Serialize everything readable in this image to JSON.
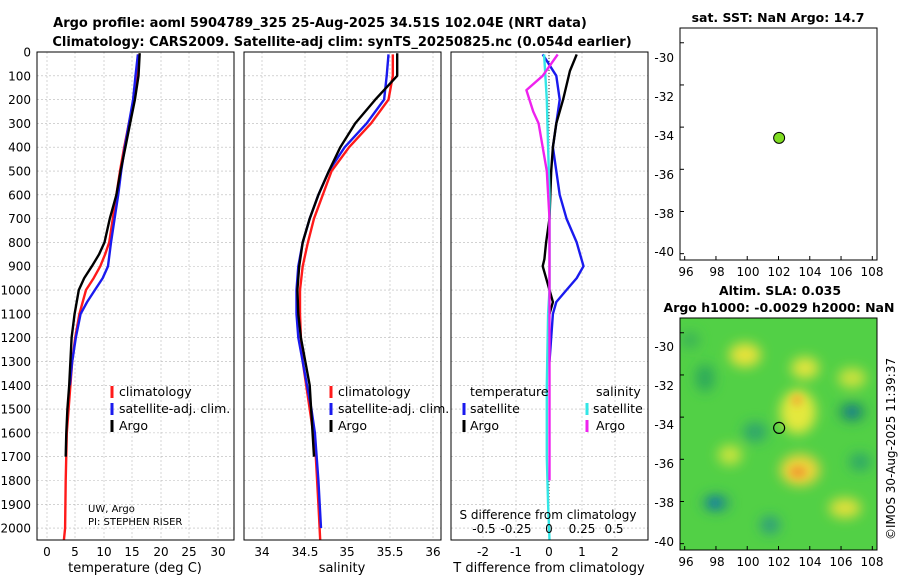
{
  "header": {
    "title_line1": "Argo profile: aoml 5904789_325 25-Aug-2025 34.51S 102.04E (NRT data)",
    "title_line2": "Climatology: CARS2009. Satellite-adj clim: synTS_20250825.nc (0.054d earlier)"
  },
  "credits": {
    "institution": "UW, Argo",
    "pi": "PI: STEPHEN RISER",
    "stamp": "©IMOS 30-Aug-2025 11:39:37"
  },
  "colors": {
    "climatology": "#ff1a1a",
    "satellite": "#1a1aee",
    "argo": "#000000",
    "sat_salinity": "#33e6e6",
    "argo_salinity": "#ee22ee",
    "sst_dot": "#7fdc22",
    "grid": "#b8b8b8"
  },
  "depth_axis": {
    "ylim": [
      2050,
      0
    ],
    "ticks": [
      "0",
      "100",
      "200",
      "300",
      "400",
      "500",
      "600",
      "700",
      "800",
      "900",
      "1000",
      "1100",
      "1200",
      "1300",
      "1400",
      "1500",
      "1600",
      "1700",
      "1800",
      "1900",
      "2000"
    ]
  },
  "chart_data": [
    {
      "type": "line",
      "name": "temperature-profile",
      "xlabel": "temperature (deg C)",
      "xlim": [
        -2,
        31
      ],
      "xticks": [
        "0",
        "5",
        "10",
        "15",
        "20",
        "25",
        "30"
      ],
      "legend": [
        "climatology",
        "satellite-adj. clim.",
        "Argo"
      ],
      "legend_position": "lower-right",
      "series": [
        {
          "name": "climatology",
          "color_key": "climatology",
          "x": [
            15.0,
            14.7,
            14.3,
            13.4,
            12.6,
            11.9,
            11.3,
            10.7,
            10.1,
            9.4,
            8.6,
            7.5,
            6.2,
            5.1,
            4.4,
            3.9,
            3.6,
            3.3,
            3.0,
            2.8,
            2.7,
            2.5
          ],
          "depth": [
            10,
            100,
            200,
            300,
            400,
            500,
            600,
            700,
            800,
            850,
            900,
            950,
            1000,
            1100,
            1200,
            1300,
            1400,
            1500,
            1600,
            1800,
            2000,
            2050
          ]
        },
        {
          "name": "satellite-adj. clim.",
          "color_key": "satellite",
          "x": [
            14.9,
            14.5,
            14.1,
            13.4,
            12.7,
            12.1,
            11.6,
            11.0,
            10.4,
            9.9,
            9.0,
            7.7,
            6.4,
            5.3,
            4.5,
            3.9,
            3.5
          ],
          "depth": [
            10,
            100,
            200,
            300,
            400,
            500,
            600,
            700,
            800,
            900,
            950,
            1000,
            1050,
            1100,
            1200,
            1300,
            1400
          ]
        },
        {
          "name": "Argo",
          "color_key": "argo",
          "x": [
            15.2,
            15.0,
            14.4,
            13.6,
            12.8,
            12.0,
            11.3,
            10.2,
            9.3,
            8.4,
            7.2,
            5.9,
            5.0,
            4.3,
            3.8,
            3.4,
            3.1,
            2.9,
            2.8
          ],
          "depth": [
            5,
            100,
            200,
            300,
            400,
            500,
            600,
            700,
            800,
            850,
            900,
            950,
            1000,
            1100,
            1200,
            1400,
            1500,
            1600,
            1700
          ]
        }
      ]
    },
    {
      "type": "line",
      "name": "salinity-profile",
      "xlabel": "salinity",
      "xlim": [
        33.85,
        36.1
      ],
      "xticks": [
        "34",
        "34.5",
        "35",
        "35.5",
        "36"
      ],
      "legend": [
        "climatology",
        "satellite-adj. clim.",
        "Argo"
      ],
      "legend_position": "lower-right",
      "series": [
        {
          "name": "climatology",
          "color_key": "climatology",
          "x": [
            35.55,
            35.55,
            35.5,
            35.3,
            35.05,
            34.85,
            34.75,
            34.65,
            34.58,
            34.52,
            34.49,
            34.49,
            34.5,
            34.52,
            34.56,
            34.6,
            34.64,
            34.67,
            34.7,
            34.72
          ],
          "depth": [
            10,
            100,
            200,
            300,
            400,
            500,
            600,
            700,
            800,
            900,
            1000,
            1100,
            1200,
            1300,
            1400,
            1500,
            1600,
            1700,
            1900,
            2050
          ]
        },
        {
          "name": "satellite-adj. clim.",
          "color_key": "satellite",
          "x": [
            35.5,
            35.48,
            35.45,
            35.25,
            35.0,
            34.82,
            34.7,
            34.6,
            34.52,
            34.47,
            34.45,
            34.45,
            34.47,
            34.52,
            34.57,
            34.62,
            34.66,
            34.7,
            34.73
          ],
          "depth": [
            10,
            100,
            200,
            300,
            400,
            500,
            600,
            700,
            800,
            900,
            1000,
            1100,
            1200,
            1300,
            1400,
            1500,
            1600,
            1800,
            2000
          ]
        },
        {
          "name": "Argo",
          "color_key": "argo",
          "x": [
            35.6,
            35.6,
            35.35,
            35.12,
            34.95,
            34.82,
            34.7,
            34.6,
            34.52,
            34.48,
            34.46,
            34.47,
            34.5,
            34.55,
            34.6,
            34.65
          ],
          "depth": [
            5,
            100,
            200,
            300,
            400,
            500,
            600,
            700,
            800,
            900,
            1000,
            1100,
            1200,
            1300,
            1400,
            1700
          ]
        }
      ]
    },
    {
      "type": "line",
      "name": "difference-profile",
      "xlabel": "T difference from climatology",
      "xlabel_top": "S difference from climatology",
      "xlim": [
        -2.9,
        2.9
      ],
      "xticks": [
        "-2",
        "-1",
        "0",
        "1",
        "2"
      ],
      "xticks_top": [
        "-0.5",
        "-0.25",
        "0",
        "0.25",
        "0.5"
      ],
      "legend_temperature_title": "temperature",
      "legend_salinity_title": "salinity",
      "legend_temperature": [
        "satellite",
        "Argo"
      ],
      "legend_salinity": [
        "satellite",
        "Argo"
      ],
      "series": [
        {
          "name": "T satellite - clim",
          "color_key": "satellite",
          "x": [
            -0.2,
            0.2,
            0.3,
            0.2,
            0.1,
            0.2,
            0.3,
            0.5,
            0.8,
            1.0,
            0.8,
            0.5,
            0.2,
            0.1,
            0.05,
            0.0
          ],
          "depth": [
            10,
            100,
            200,
            300,
            400,
            500,
            600,
            700,
            800,
            900,
            950,
            1000,
            1050,
            1100,
            1200,
            1300
          ]
        },
        {
          "name": "T Argo - clim",
          "color_key": "argo",
          "x": [
            0.8,
            0.6,
            0.4,
            0.2,
            0.1,
            0.05,
            0.0,
            -0.1,
            -0.15,
            -0.2,
            -0.1,
            0.0,
            0.1,
            0.0
          ],
          "depth": [
            10,
            80,
            200,
            300,
            400,
            500,
            700,
            800,
            870,
            900,
            950,
            1000,
            1050,
            1100
          ]
        },
        {
          "name": "S satellite - clim",
          "color_key": "sat_salinity",
          "x": [
            -0.04,
            -0.02,
            -0.01,
            0.0,
            0.0,
            0.0,
            -0.01,
            -0.02,
            -0.02,
            -0.01,
            0.0
          ],
          "depth": [
            10,
            200,
            400,
            600,
            800,
            1000,
            1100,
            1400,
            1700,
            1900,
            2050
          ]
        },
        {
          "name": "S Argo - clim",
          "color_key": "argo_salinity",
          "x": [
            0.06,
            -0.05,
            -0.17,
            -0.12,
            -0.08,
            -0.05,
            -0.02,
            0.0,
            0.0,
            0.0
          ],
          "depth": [
            10,
            100,
            160,
            250,
            300,
            400,
            500,
            700,
            1000,
            1800
          ]
        }
      ]
    },
    {
      "type": "scatter",
      "name": "sst-map",
      "title": "sat. SST: NaN Argo: 14.7",
      "xlim": [
        95.7,
        108.3
      ],
      "ylim": [
        -40.3,
        -29.3
      ],
      "xticks": [
        "96",
        "98",
        "100",
        "102",
        "104",
        "106",
        "108"
      ],
      "yticks": [
        "-30",
        "-32",
        "-34",
        "-36",
        "-38",
        "-40"
      ],
      "points": [
        {
          "lon": 102.04,
          "lat": -34.51
        }
      ]
    },
    {
      "type": "heatmap",
      "name": "sla-map",
      "title_line1": "Altim. SLA: 0.035",
      "title_line2": "Argo h1000: -0.0029 h2000: NaN",
      "xlim": [
        95.7,
        108.3
      ],
      "ylim": [
        -40.3,
        -29.3
      ],
      "xticks": [
        "96",
        "98",
        "100",
        "102",
        "104",
        "106",
        "108"
      ],
      "yticks": [
        "-30",
        "-32",
        "-34",
        "-36",
        "-38",
        "-40"
      ],
      "points": [
        {
          "lon": 102.04,
          "lat": -34.51
        }
      ]
    }
  ]
}
